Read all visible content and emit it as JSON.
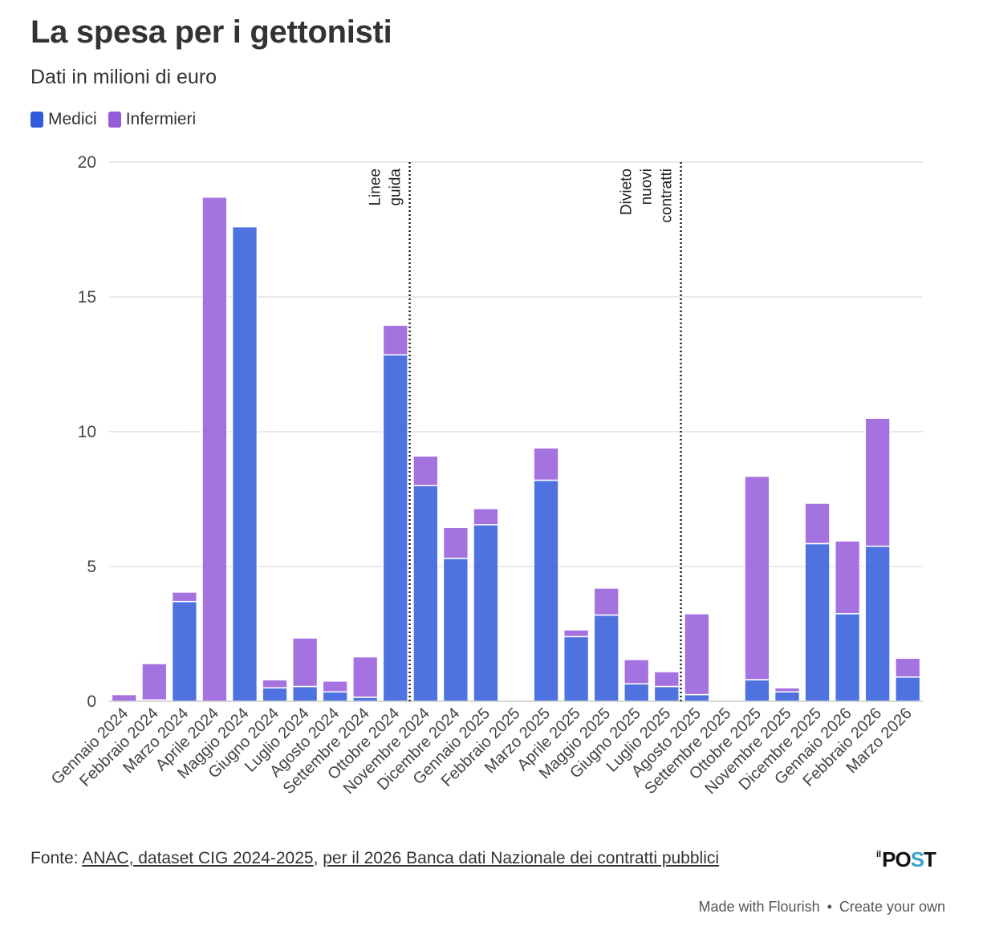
{
  "header": {
    "title": "La spesa per i gettonisti",
    "subtitle": "Dati in milioni di euro"
  },
  "legend": {
    "items": [
      {
        "label": "Medici",
        "color": "#2f5bdc"
      },
      {
        "label": "Infermieri",
        "color": "#955bd9"
      }
    ]
  },
  "chart_data": {
    "type": "bar",
    "stacked": true,
    "categories": [
      "Gennaio 2024",
      "Febbraio 2024",
      "Marzo 2024",
      "Aprile 2024",
      "Maggio 2024",
      "Giugno 2024",
      "Luglio 2024",
      "Agosto 2024",
      "Settembre 2024",
      "Ottobre 2024",
      "Novembre 2024",
      "Dicembre 2024",
      "Gennaio 2025",
      "Febbraio 2025",
      "Marzo 2025",
      "Aprile 2025",
      "Maggio 2025",
      "Giugno 2025",
      "Luglio 2025",
      "Agosto 2025",
      "Settembre 2025",
      "Ottobre 2025",
      "Novembre 2025",
      "Dicembre 2025",
      "Gennaio 2026",
      "Febbraio 2026",
      "Marzo 2026"
    ],
    "series": [
      {
        "name": "Medici",
        "color": "#2f5bdc",
        "values": [
          0,
          0.05,
          3.7,
          0,
          17.6,
          0.5,
          0.55,
          0.35,
          0.15,
          12.85,
          8.0,
          5.3,
          6.55,
          0,
          8.2,
          2.4,
          3.2,
          0.65,
          0.55,
          0.25,
          0,
          0.8,
          0.35,
          5.85,
          3.25,
          5.75,
          0.9
        ]
      },
      {
        "name": "Infermieri",
        "color": "#955bd9",
        "values": [
          0.25,
          1.35,
          0.35,
          18.7,
          0,
          0.3,
          1.8,
          0.4,
          1.5,
          1.1,
          1.1,
          1.15,
          0.6,
          0,
          1.2,
          0.25,
          1.0,
          0.9,
          0.55,
          3.0,
          0,
          7.55,
          0.15,
          1.5,
          2.7,
          4.75,
          0.7
        ]
      }
    ],
    "ylim": [
      0,
      20
    ],
    "yticks": [
      0,
      5,
      10,
      15,
      20
    ],
    "grid": true,
    "legend_position": "top-left",
    "annotations": [
      {
        "lines": [
          "Linee",
          "guida"
        ],
        "x_after": "Ottobre 2024"
      },
      {
        "lines": [
          "Divieto",
          "nuovi",
          "contratti"
        ],
        "x_after": "Luglio 2025"
      }
    ]
  },
  "footer": {
    "source_prefix": "Fonte: ",
    "source_link1": "ANAC, dataset CIG 2024-2025",
    "source_sep": ", ",
    "source_link2": "per il 2026 Banca dati Nazionale dei contratti pubblici",
    "logo_il": "il",
    "logo_po": "PO",
    "logo_s": "S",
    "logo_t": "T",
    "made_with": "Made with Flourish",
    "separator": "•",
    "create": "Create your own"
  }
}
